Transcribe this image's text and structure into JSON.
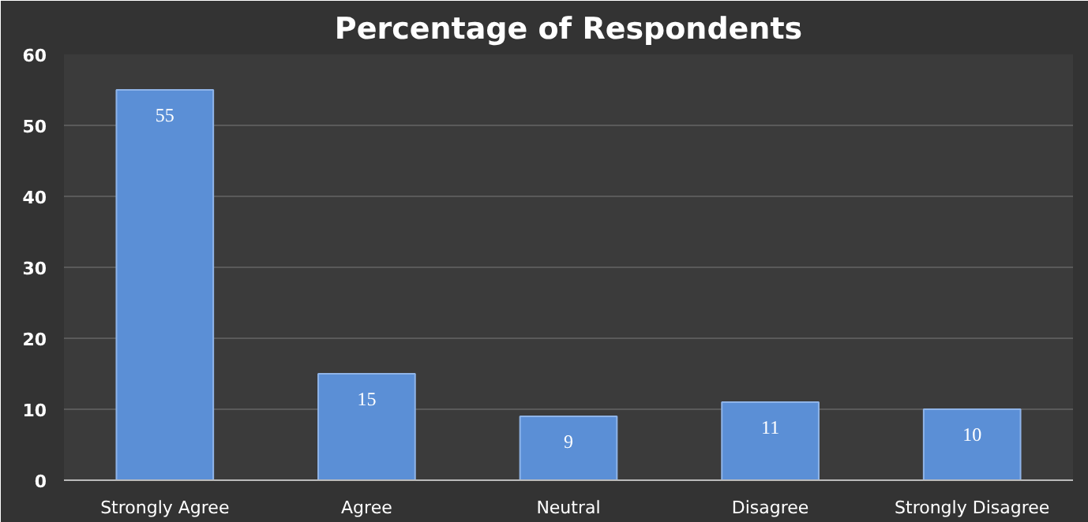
{
  "chart_data": {
    "type": "bar",
    "title": "Percentage of Respondents",
    "categories": [
      "Strongly Agree",
      "Agree",
      "Neutral",
      "Disagree",
      "Strongly Disagree"
    ],
    "values": [
      55,
      15,
      9,
      11,
      10
    ],
    "color": "#5b8fd6",
    "ylim": [
      0,
      60
    ],
    "yticks": [
      0,
      10,
      20,
      30,
      40,
      50,
      60
    ],
    "grid": "y",
    "data_labels": true
  }
}
